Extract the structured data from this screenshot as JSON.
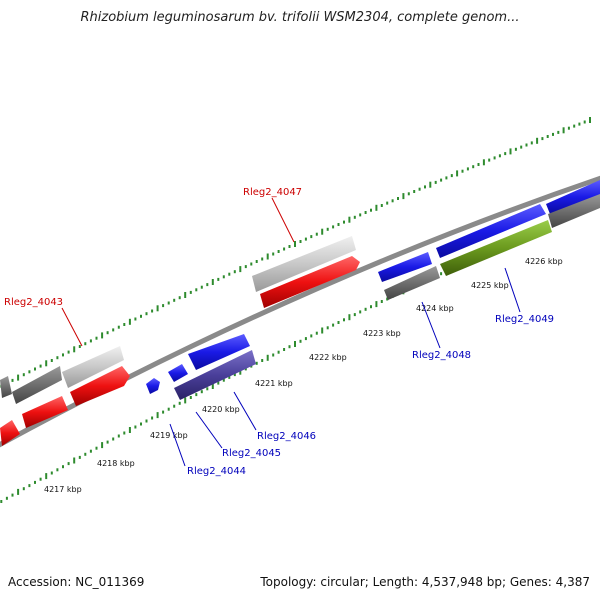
{
  "title": "Rhizobium leguminosarum bv. trifolii WSM2304, complete genom...",
  "footer": {
    "accession": "Accession: NC_011369",
    "summary": "Topology: circular; Length: 4,537,948 bp; Genes: 4,387"
  },
  "colors": {
    "backbone": "#8a8a8a",
    "tick": "#2e8b2e",
    "label_red": "#cc0000",
    "label_blue": "#0000bb",
    "gene_blue": "#1a1ae6",
    "gene_red": "#ee1111",
    "gene_gray": "#6e6e6e",
    "gene_lightgray": "#c8c8c8",
    "gene_slate": "#4a3f9a",
    "gene_olive": "#6b9a1e"
  },
  "ticks": [
    {
      "label": "4217 kbp"
    },
    {
      "label": "4218 kbp"
    },
    {
      "label": "4219 kbp"
    },
    {
      "label": "4220 kbp"
    },
    {
      "label": "4221 kbp"
    },
    {
      "label": "4222 kbp"
    },
    {
      "label": "4223 kbp"
    },
    {
      "label": "4224 kbp"
    },
    {
      "label": "4225 kbp"
    },
    {
      "label": "4226 kbp"
    }
  ],
  "gene_labels": [
    {
      "name": "Rleg2_4043",
      "color": "label_red"
    },
    {
      "name": "Rleg2_4047",
      "color": "label_red"
    },
    {
      "name": "Rleg2_4044",
      "color": "label_blue"
    },
    {
      "name": "Rleg2_4045",
      "color": "label_blue"
    },
    {
      "name": "Rleg2_4046",
      "color": "label_blue"
    },
    {
      "name": "Rleg2_4048",
      "color": "label_blue"
    },
    {
      "name": "Rleg2_4049",
      "color": "label_blue"
    }
  ]
}
